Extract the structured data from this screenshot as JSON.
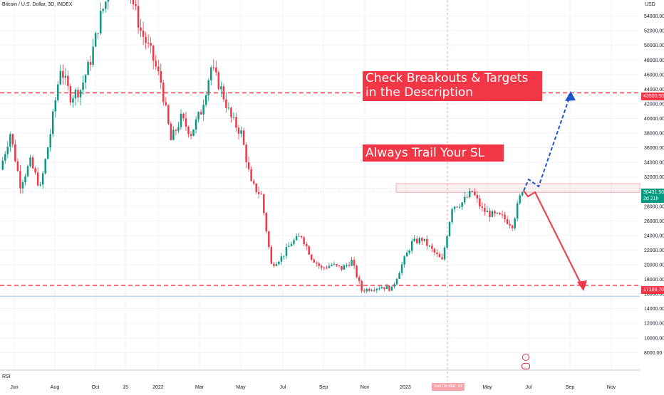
{
  "header": {
    "symbol_title": "Bitcoin / U.S. Dollar, 3D, INDEX"
  },
  "chart_data": {
    "type": "candlestick",
    "title": "Bitcoin / U.S. Dollar, 3D, INDEX",
    "y_unit": "USD",
    "ylim": [
      5600,
      56200
    ],
    "y_ticks": [
      8000,
      10000,
      12000,
      14000,
      16000,
      18000,
      20000,
      22000,
      24000,
      26000,
      28000,
      30000,
      32000,
      34000,
      36000,
      38000,
      40000,
      42000,
      44000,
      46000,
      48000,
      50000,
      52000,
      54000
    ],
    "y_tick_labels": [
      "8000.00",
      "10000.00",
      "12000.00",
      "14000.00",
      "16000.00",
      "18000.00",
      "20000.00",
      "22000.00",
      "24000.00",
      "26000.00",
      "28000.00",
      "30000.00",
      "32000.00",
      "34000.00",
      "36000.00",
      "38000.00",
      "40000.00",
      "42000.00",
      "44000.00",
      "46000.00",
      "48000.00",
      "50000.00",
      "52000.00",
      "54000.00"
    ],
    "x_labels": [
      "Jun",
      "Aug",
      "Oct",
      "15",
      "2022",
      "Mar",
      "May",
      "Jul",
      "Sep",
      "Nov",
      "2023",
      "Sun 05 Mar '23",
      "May",
      "Jul",
      "Sep",
      "Nov"
    ],
    "grid": true,
    "trend_path": [
      [
        "Jun",
        33000
      ],
      [
        "Jun",
        38000
      ],
      [
        "Jul",
        31000
      ],
      [
        "Jul",
        34000
      ],
      [
        "Jul",
        30500
      ],
      [
        "Aug",
        38000
      ],
      [
        "Aug",
        47000
      ],
      [
        "Sep",
        43000
      ],
      [
        "Sep",
        44000
      ],
      [
        "Oct",
        48000
      ],
      [
        "Oct",
        54000
      ],
      [
        "Oct",
        58000
      ],
      [
        "Nov",
        61000
      ],
      [
        "Nov",
        57000
      ],
      [
        "Dec",
        52000
      ],
      [
        "Dec",
        49000
      ],
      [
        "Jan",
        45000
      ],
      [
        "Jan",
        37000
      ],
      [
        "Feb",
        40000
      ],
      [
        "Feb",
        38000
      ],
      [
        "Mar",
        41000
      ],
      [
        "Mar",
        47000
      ],
      [
        "Apr",
        44000
      ],
      [
        "Apr",
        40000
      ],
      [
        "May",
        38000
      ],
      [
        "May",
        31000
      ],
      [
        "Jun",
        29500
      ],
      [
        "Jun",
        20000
      ],
      [
        "Jul",
        21000
      ],
      [
        "Jul",
        23000
      ],
      [
        "Aug",
        24000
      ],
      [
        "Aug",
        21000
      ],
      [
        "Sep",
        19500
      ],
      [
        "Sep",
        20000
      ],
      [
        "Oct",
        19500
      ],
      [
        "Oct",
        20500
      ],
      [
        "Nov",
        16500
      ],
      [
        "Nov",
        16800
      ],
      [
        "Dec",
        17000
      ],
      [
        "Dec",
        16700
      ],
      [
        "Jan",
        20000
      ],
      [
        "Jan",
        23000
      ],
      [
        "Feb",
        23500
      ],
      [
        "Feb",
        22000
      ],
      [
        "Mar",
        20500
      ],
      [
        "Mar",
        28000
      ],
      [
        "Apr",
        28500
      ],
      [
        "Apr",
        30000
      ],
      [
        "May",
        27500
      ],
      [
        "May",
        26800
      ],
      [
        "Jun",
        26500
      ],
      [
        "Jun",
        25500
      ],
      [
        "Jun",
        30400
      ]
    ],
    "levels": [
      {
        "label": "43500.50",
        "value": 43500.5,
        "color": "#f23645"
      },
      {
        "label": "17188.70",
        "value": 17188.7,
        "color": "#f23645"
      }
    ],
    "resistance_zone": [
      29900,
      31100
    ],
    "current_price": {
      "label": "30431.50",
      "value": 30431.5,
      "countdown": "2d 21h",
      "color": "#089981"
    },
    "blue_line_value": 15700
  },
  "annotations": {
    "banner_breakouts": {
      "line1": "Check Breakouts & Targets",
      "line2": "in the Description"
    },
    "banner_trail": "Always Trail Your SL"
  },
  "axis": {
    "unit_label": "USD"
  },
  "indicator": {
    "label": "RSI"
  },
  "colors": {
    "up": "#089981",
    "down": "#f23645",
    "bull_arrow": "#1e55c8",
    "bear_arrow": "#f23645",
    "level": "#f23645",
    "banner": "#f23645",
    "x_highlight": "#f7a5ab"
  }
}
